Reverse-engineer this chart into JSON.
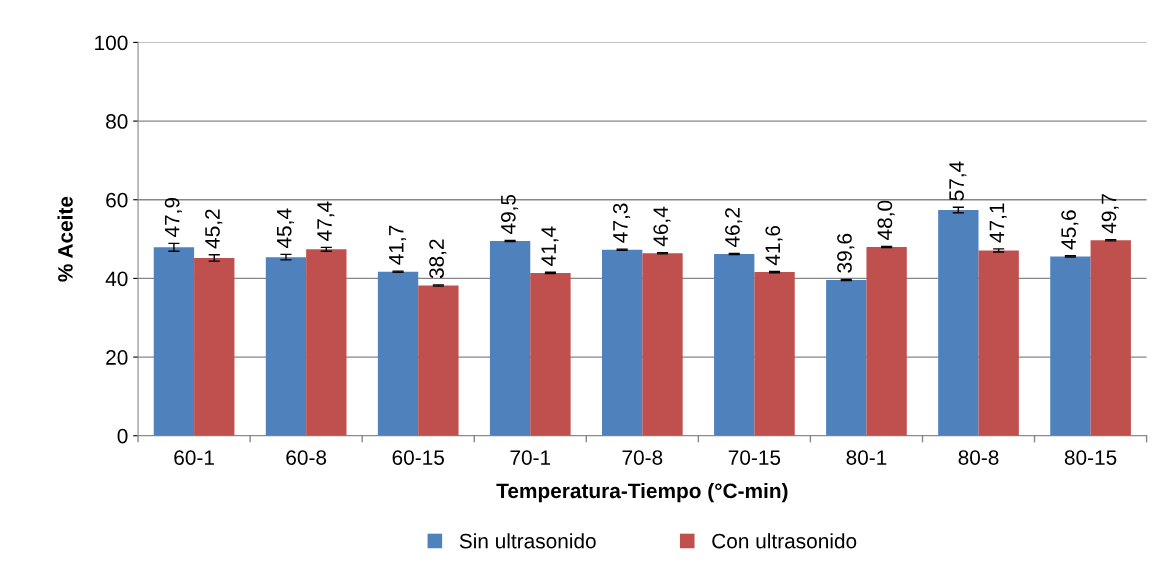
{
  "chart_data": {
    "type": "bar",
    "xlabel": "Temperatura-Tiempo (°C-min)",
    "ylabel": "% Aceite",
    "categories": [
      "60-1",
      "60-8",
      "60-15",
      "70-1",
      "70-8",
      "70-15",
      "80-1",
      "80-8",
      "80-15"
    ],
    "series": [
      {
        "name": "Sin ultrasonido",
        "color": "#4f81bd",
        "values": [
          47.9,
          45.4,
          41.7,
          49.5,
          47.3,
          46.2,
          39.6,
          57.4,
          45.6
        ],
        "errors": [
          1.0,
          0.7,
          0.15,
          0.15,
          0.15,
          0.15,
          0.15,
          0.7,
          0.15
        ],
        "value_labels": [
          "47,9",
          "45,4",
          "41,7",
          "49,5",
          "47,3",
          "46,2",
          "39,6",
          "57,4",
          "45,6"
        ]
      },
      {
        "name": "Con ultrasonido",
        "color": "#c0504d",
        "values": [
          45.2,
          47.4,
          38.2,
          41.4,
          46.4,
          41.6,
          48.0,
          47.1,
          49.7
        ],
        "errors": [
          0.8,
          0.5,
          0.15,
          0.15,
          0.15,
          0.15,
          0.15,
          0.4,
          0.15
        ],
        "value_labels": [
          "45,2",
          "47,4",
          "38,2",
          "41,4",
          "46,4",
          "41,6",
          "48,0",
          "47,1",
          "49,7"
        ]
      }
    ],
    "ylim": [
      0,
      100
    ],
    "yticks": [
      0,
      20,
      40,
      60,
      80,
      100
    ],
    "grid": "y",
    "legend": "bottom"
  }
}
